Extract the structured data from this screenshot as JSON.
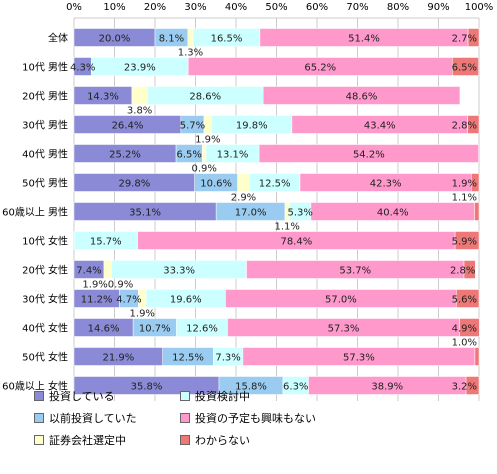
{
  "chart_data": {
    "type": "bar",
    "orientation": "horizontal",
    "stacked": true,
    "percent": true,
    "xlim": [
      0,
      100
    ],
    "x_ticks": [
      "0%",
      "10%",
      "20%",
      "30%",
      "40%",
      "50%",
      "60%",
      "70%",
      "80%",
      "90%",
      "100%"
    ],
    "grid": true,
    "legend_position": "bottom",
    "categories": [
      "全体",
      "10代 男性",
      "20代 男性",
      "30代 男性",
      "40代 男性",
      "50代 男性",
      "60歳以上 男性",
      "10代 女性",
      "20代 女性",
      "30代 女性",
      "40代 女性",
      "50代 女性",
      "60歳以上 女性"
    ],
    "series": [
      {
        "name": "投資している",
        "color": "#8a8ad6",
        "values": [
          20.0,
          4.3,
          14.3,
          26.4,
          25.2,
          29.8,
          35.1,
          0.0,
          7.4,
          11.2,
          14.6,
          21.9,
          35.8
        ]
      },
      {
        "name": "以前投資していた",
        "color": "#99ccf0",
        "values": [
          8.1,
          0.0,
          0.0,
          5.7,
          6.5,
          10.6,
          17.0,
          0.0,
          0.0,
          4.7,
          10.7,
          12.5,
          15.8
        ]
      },
      {
        "name": "証券会社選定中",
        "color": "#ffffcc",
        "values": [
          1.3,
          0.0,
          3.8,
          1.9,
          0.9,
          2.9,
          1.1,
          0.0,
          1.9,
          1.9,
          0.0,
          0.0,
          0.0
        ]
      },
      {
        "name": "投資検討中",
        "color": "#ccffff",
        "values": [
          16.5,
          23.9,
          28.6,
          19.8,
          13.1,
          12.5,
          5.3,
          15.7,
          33.3,
          19.6,
          12.6,
          7.3,
          6.3
        ]
      },
      {
        "name": "投資の予定も興味もない",
        "color": "#ff99cc",
        "values": [
          51.4,
          65.2,
          48.6,
          43.4,
          54.2,
          42.3,
          40.4,
          78.4,
          53.7,
          57.0,
          57.3,
          57.3,
          38.9
        ]
      },
      {
        "name": "わからない",
        "color": "#ee7777",
        "values": [
          2.7,
          6.5,
          0.0,
          2.8,
          0.0,
          1.9,
          1.1,
          5.9,
          2.8,
          5.6,
          4.9,
          1.0,
          3.2
        ]
      }
    ],
    "labels": [
      [
        "20.0%",
        "8.1%",
        "1.3%",
        "16.5%",
        "51.4%",
        "2.7%"
      ],
      [
        "4.3%",
        "",
        "",
        "23.9%",
        "65.2%",
        "6.5%"
      ],
      [
        "14.3%",
        "",
        "3.8%",
        "28.6%",
        "48.6%",
        ""
      ],
      [
        "26.4%",
        "5.7%",
        "1.9%",
        "19.8%",
        "43.4%",
        "2.8%"
      ],
      [
        "25.2%",
        "6.5%",
        "0.9%",
        "13.1%",
        "54.2%",
        ""
      ],
      [
        "29.8%",
        "10.6%",
        "2.9%",
        "12.5%",
        "42.3%",
        "1.9%"
      ],
      [
        "35.1%",
        "17.0%",
        "1.1%",
        "5.3%",
        "40.4%",
        "1.1%"
      ],
      [
        "",
        "",
        "",
        "15.7%",
        "78.4%",
        "5.9%"
      ],
      [
        "7.4%",
        "",
        "1.9%0.9%",
        "33.3%",
        "53.7%",
        "2.8%"
      ],
      [
        "11.2%",
        "4.7%",
        "1.9%",
        "19.6%",
        "57.0%",
        "5.6%"
      ],
      [
        "14.6%",
        "10.7%",
        "",
        "12.6%",
        "57.3%",
        "4.9%"
      ],
      [
        "21.9%",
        "12.5%",
        "",
        "7.3%",
        "57.3%",
        "1.0%"
      ],
      [
        "35.8%",
        "15.8%",
        "",
        "6.3%",
        "38.9%",
        "3.2%"
      ]
    ]
  }
}
